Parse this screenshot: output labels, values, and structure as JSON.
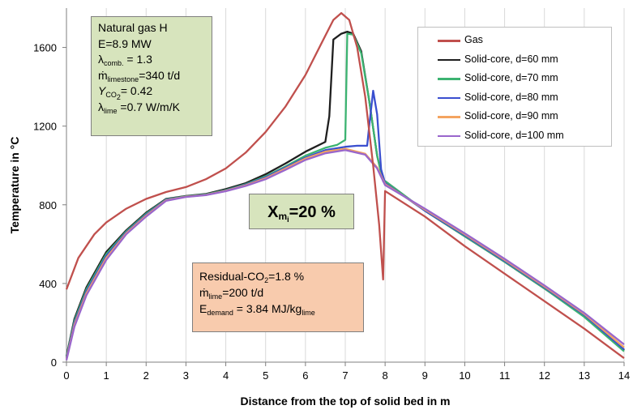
{
  "chart_data": {
    "type": "line",
    "xlabel": "Distance from the top of solid bed in m",
    "ylabel": "Temperature in °C",
    "xlim": [
      0,
      14
    ],
    "ylim": [
      0,
      1800
    ],
    "x_ticks": [
      0,
      1,
      2,
      3,
      4,
      5,
      6,
      7,
      8,
      9,
      10,
      11,
      12,
      13,
      14
    ],
    "y_ticks": [
      0,
      400,
      800,
      1200,
      1600
    ],
    "grid": "vertical",
    "legend_position": "top-right",
    "series": [
      {
        "name": "Gas",
        "color": "#c0504d",
        "points": [
          [
            0,
            370
          ],
          [
            0.3,
            530
          ],
          [
            0.7,
            650
          ],
          [
            1,
            710
          ],
          [
            1.5,
            780
          ],
          [
            2,
            830
          ],
          [
            2.5,
            865
          ],
          [
            3,
            890
          ],
          [
            3.5,
            930
          ],
          [
            4,
            985
          ],
          [
            4.5,
            1065
          ],
          [
            5,
            1170
          ],
          [
            5.5,
            1300
          ],
          [
            6,
            1460
          ],
          [
            6.4,
            1620
          ],
          [
            6.7,
            1740
          ],
          [
            6.9,
            1775
          ],
          [
            7.1,
            1740
          ],
          [
            7.3,
            1600
          ],
          [
            7.5,
            1350
          ],
          [
            7.7,
            1000
          ],
          [
            7.85,
            700
          ],
          [
            7.95,
            420
          ],
          [
            8,
            870
          ],
          [
            9,
            740
          ],
          [
            10,
            590
          ],
          [
            11,
            450
          ],
          [
            12,
            310
          ],
          [
            13,
            170
          ],
          [
            14,
            20
          ]
        ]
      },
      {
        "name": "Solid-core, d=60 mm",
        "color": "#1f1f1f",
        "points": [
          [
            0,
            30
          ],
          [
            0.2,
            220
          ],
          [
            0.5,
            380
          ],
          [
            1,
            560
          ],
          [
            1.5,
            670
          ],
          [
            2,
            760
          ],
          [
            2.5,
            830
          ],
          [
            3,
            845
          ],
          [
            3.5,
            855
          ],
          [
            4,
            880
          ],
          [
            4.5,
            910
          ],
          [
            5,
            955
          ],
          [
            5.5,
            1010
          ],
          [
            6,
            1070
          ],
          [
            6.5,
            1120
          ],
          [
            6.6,
            1250
          ],
          [
            6.7,
            1640
          ],
          [
            6.9,
            1670
          ],
          [
            7.05,
            1680
          ],
          [
            7.2,
            1670
          ],
          [
            7.4,
            1580
          ],
          [
            7.6,
            1330
          ],
          [
            7.8,
            1050
          ],
          [
            7.95,
            920
          ],
          [
            8,
            920
          ],
          [
            9,
            770
          ],
          [
            10,
            640
          ],
          [
            11,
            510
          ],
          [
            12,
            375
          ],
          [
            13,
            235
          ],
          [
            14,
            60
          ]
        ]
      },
      {
        "name": "Solid-core, d=70 mm",
        "color": "#3cb371",
        "points": [
          [
            0,
            25
          ],
          [
            0.2,
            210
          ],
          [
            0.5,
            370
          ],
          [
            1,
            550
          ],
          [
            1.5,
            665
          ],
          [
            2,
            755
          ],
          [
            2.5,
            828
          ],
          [
            3,
            843
          ],
          [
            3.5,
            853
          ],
          [
            4,
            875
          ],
          [
            4.5,
            905
          ],
          [
            5,
            945
          ],
          [
            5.5,
            995
          ],
          [
            6,
            1050
          ],
          [
            6.5,
            1090
          ],
          [
            6.8,
            1105
          ],
          [
            7.0,
            1130
          ],
          [
            7.05,
            1670
          ],
          [
            7.2,
            1665
          ],
          [
            7.4,
            1570
          ],
          [
            7.6,
            1330
          ],
          [
            7.8,
            1050
          ],
          [
            7.95,
            920
          ],
          [
            8,
            920
          ],
          [
            9,
            770
          ],
          [
            10,
            640
          ],
          [
            11,
            510
          ],
          [
            12,
            375
          ],
          [
            13,
            230
          ],
          [
            14,
            55
          ]
        ]
      },
      {
        "name": "Solid-core, d=80 mm",
        "color": "#3a4fcf",
        "points": [
          [
            0,
            20
          ],
          [
            0.2,
            200
          ],
          [
            0.5,
            360
          ],
          [
            1,
            540
          ],
          [
            1.5,
            660
          ],
          [
            2,
            750
          ],
          [
            2.5,
            826
          ],
          [
            3,
            842
          ],
          [
            3.5,
            851
          ],
          [
            4,
            873
          ],
          [
            4.5,
            902
          ],
          [
            5,
            940
          ],
          [
            5.5,
            990
          ],
          [
            6,
            1040
          ],
          [
            6.5,
            1078
          ],
          [
            7,
            1095
          ],
          [
            7.3,
            1100
          ],
          [
            7.55,
            1100
          ],
          [
            7.6,
            1200
          ],
          [
            7.7,
            1380
          ],
          [
            7.8,
            1260
          ],
          [
            7.9,
            980
          ],
          [
            8,
            910
          ],
          [
            9,
            770
          ],
          [
            10,
            645
          ],
          [
            11,
            515
          ],
          [
            12,
            380
          ],
          [
            13,
            240
          ],
          [
            14,
            65
          ]
        ]
      },
      {
        "name": "Solid-core, d=90 mm",
        "color": "#f4a460",
        "points": [
          [
            0,
            15
          ],
          [
            0.2,
            190
          ],
          [
            0.5,
            350
          ],
          [
            1,
            530
          ],
          [
            1.5,
            655
          ],
          [
            2,
            745
          ],
          [
            2.5,
            823
          ],
          [
            3,
            841
          ],
          [
            3.5,
            850
          ],
          [
            4,
            871
          ],
          [
            4.5,
            899
          ],
          [
            5,
            935
          ],
          [
            5.5,
            985
          ],
          [
            6,
            1035
          ],
          [
            6.5,
            1070
          ],
          [
            7,
            1085
          ],
          [
            7.5,
            1060
          ],
          [
            7.8,
            990
          ],
          [
            8,
            905
          ],
          [
            9,
            775
          ],
          [
            10,
            650
          ],
          [
            11,
            520
          ],
          [
            12,
            385
          ],
          [
            13,
            245
          ],
          [
            14,
            75
          ]
        ]
      },
      {
        "name": "Solid-core, d=100 mm",
        "color": "#9966cc",
        "points": [
          [
            0,
            10
          ],
          [
            0.2,
            180
          ],
          [
            0.5,
            340
          ],
          [
            1,
            520
          ],
          [
            1.5,
            650
          ],
          [
            2,
            740
          ],
          [
            2.5,
            820
          ],
          [
            3,
            840
          ],
          [
            3.5,
            849
          ],
          [
            4,
            869
          ],
          [
            4.5,
            896
          ],
          [
            5,
            930
          ],
          [
            5.5,
            978
          ],
          [
            6,
            1028
          ],
          [
            6.5,
            1062
          ],
          [
            7,
            1078
          ],
          [
            7.5,
            1055
          ],
          [
            7.8,
            985
          ],
          [
            8,
            900
          ],
          [
            9,
            780
          ],
          [
            10,
            655
          ],
          [
            11,
            525
          ],
          [
            12,
            390
          ],
          [
            13,
            250
          ],
          [
            14,
            90
          ]
        ]
      }
    ]
  },
  "annotations": {
    "params": {
      "title": "Natural gas H",
      "power": "E=8.9 MW",
      "lambda_comb": {
        "sym": "λ",
        "sub": "comb.",
        "rest": " = 1.3"
      },
      "m_limestone": {
        "sym": "ṁ",
        "sub": "limestone",
        "rest": "=340 t/d"
      },
      "y_co2": {
        "sym": "Y",
        "sub": "CO",
        "sub2": "2",
        "rest": "=  0.42"
      },
      "lambda_lime": {
        "sym": "λ",
        "sub": "lime",
        "rest": " =0.7 W/m/K"
      }
    },
    "x_box": {
      "sym": "X",
      "sub": "m",
      "sub2": "i",
      "rest": "=20 %"
    },
    "residual": {
      "line1_pre": "Residual-CO",
      "line1_sub": "2",
      "line1_post": "=1.8  %",
      "m_lime": {
        "sym": "ṁ",
        "sub": "lime",
        "rest": "=200  t/d"
      },
      "e_demand": {
        "sym": "E",
        "sub": "demand",
        "rest": " = 3.84 MJ/kg",
        "tail_sub": "lime"
      }
    }
  }
}
